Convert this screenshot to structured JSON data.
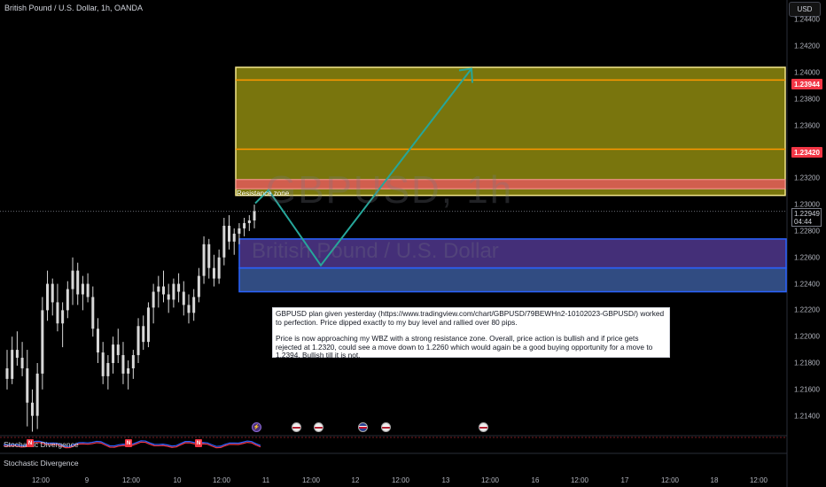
{
  "header": {
    "title": "British Pound / U.S. Dollar, 1h, OANDA",
    "currency": "USD"
  },
  "watermark": {
    "symbol": "GBPUSD, 1h",
    "name": "British Pound / U.S. Dollar"
  },
  "zone_label": "Resistance zone",
  "price_badges": {
    "upper": "1.23944",
    "lower": "1.23420"
  },
  "last_price": {
    "price": "1.22949",
    "countdown": "04:44"
  },
  "note": {
    "paragraph1": "GBPUSD plan given yesterday (https://www.tradingview.com/chart/GBPUSD/79BEWHn2-10102023-GBPUSD/) worked to perfection. Price dipped exactly to my buy level and rallied over 80 pips.",
    "paragraph2": "Price is now approaching my WBZ with a strong resistance zone. Overall, price action is bullish and if price gets rejected at 1.2320, could see a move down to 1.2260 which would again be a good buying opportunity for a move to 1.2394. Bullish till it is not."
  },
  "indicators": {
    "pane1": "Stochastic Divergence",
    "pane2": "Stochastic Divergence",
    "marker": "N"
  },
  "colors": {
    "up": "#089981",
    "down": "#f23645",
    "resistance_fill": "#8e8a0f",
    "resistance_border": "#f5e88a",
    "orange_line": "#ff9800",
    "support_fill": "#3d5fa3",
    "support_border": "#2962ff",
    "arrow": "#26a69a"
  },
  "icons": [
    "bolt-icon",
    "us-flag-icon",
    "uk-flag-icon"
  ],
  "chart_data": {
    "type": "candlestick",
    "symbol": "GBPUSD",
    "interval": "1h",
    "y_ticks": [
      "1.24400",
      "1.24200",
      "1.24000",
      "1.23800",
      "1.23600",
      "1.23400",
      "1.23200",
      "1.23000",
      "1.22800",
      "1.22600",
      "1.22400",
      "1.22200",
      "1.22000",
      "1.21800",
      "1.21600",
      "1.21400"
    ],
    "x_ticks": [
      "12:00",
      "9",
      "12:00",
      "10",
      "12:00",
      "11",
      "12:00",
      "12",
      "12:00",
      "13",
      "12:00",
      "16",
      "12:00",
      "17",
      "12:00",
      "18",
      "12:00"
    ],
    "ylim": [
      1.2125,
      1.2455
    ],
    "zones": {
      "resistance": [
        1.2307,
        1.2404
      ],
      "resistance_core": [
        1.2312,
        1.2319
      ],
      "support_upper": [
        1.2252,
        1.2274
      ],
      "support_lower": [
        1.2234,
        1.2252
      ]
    },
    "levels": [
      1.23944,
      1.2342
    ],
    "last": 1.22949,
    "projection": [
      1.2301,
      1.2311,
      1.2254,
      1.2403
    ],
    "ohlc": [
      [
        1.2176,
        1.219,
        1.216,
        1.2168
      ],
      [
        1.2168,
        1.22,
        1.2164,
        1.219
      ],
      [
        1.219,
        1.2204,
        1.2178,
        1.2184
      ],
      [
        1.2184,
        1.2196,
        1.217,
        1.2176
      ],
      [
        1.2176,
        1.219,
        1.2132,
        1.215
      ],
      [
        1.215,
        1.216,
        1.2128,
        1.214
      ],
      [
        1.214,
        1.218,
        1.213,
        1.2172
      ],
      [
        1.2172,
        1.223,
        1.216,
        1.222
      ],
      [
        1.222,
        1.225,
        1.2212,
        1.224
      ],
      [
        1.224,
        1.2244,
        1.2216,
        1.2226
      ],
      [
        1.2226,
        1.224,
        1.2204,
        1.221
      ],
      [
        1.221,
        1.2226,
        1.2192,
        1.222
      ],
      [
        1.222,
        1.2242,
        1.2214,
        1.2236
      ],
      [
        1.2236,
        1.226,
        1.2224,
        1.225
      ],
      [
        1.225,
        1.2256,
        1.2224,
        1.2232
      ],
      [
        1.2232,
        1.2246,
        1.222,
        1.224
      ],
      [
        1.224,
        1.2248,
        1.2226,
        1.223
      ],
      [
        1.223,
        1.2238,
        1.22,
        1.2206
      ],
      [
        1.2206,
        1.2214,
        1.218,
        1.2188
      ],
      [
        1.2188,
        1.2196,
        1.2164,
        1.217
      ],
      [
        1.217,
        1.2186,
        1.216,
        1.218
      ],
      [
        1.218,
        1.22,
        1.2172,
        1.2194
      ],
      [
        1.2194,
        1.2206,
        1.218,
        1.2186
      ],
      [
        1.2186,
        1.2196,
        1.2164,
        1.2172
      ],
      [
        1.2172,
        1.2182,
        1.216,
        1.2176
      ],
      [
        1.2176,
        1.219,
        1.2168,
        1.2186
      ],
      [
        1.2186,
        1.2214,
        1.218,
        1.2208
      ],
      [
        1.2208,
        1.2216,
        1.219,
        1.2196
      ],
      [
        1.2196,
        1.2226,
        1.2192,
        1.2222
      ],
      [
        1.2222,
        1.224,
        1.221,
        1.2234
      ],
      [
        1.2234,
        1.2246,
        1.2222,
        1.2238
      ],
      [
        1.2238,
        1.225,
        1.2226,
        1.2232
      ],
      [
        1.2232,
        1.224,
        1.2218,
        1.2228
      ],
      [
        1.2228,
        1.2244,
        1.2222,
        1.224
      ],
      [
        1.224,
        1.2248,
        1.2226,
        1.2234
      ],
      [
        1.2234,
        1.2242,
        1.2216,
        1.2224
      ],
      [
        1.2224,
        1.2232,
        1.221,
        1.2218
      ],
      [
        1.2218,
        1.2236,
        1.2212,
        1.223
      ],
      [
        1.223,
        1.2252,
        1.2226,
        1.2246
      ],
      [
        1.2246,
        1.2276,
        1.224,
        1.227
      ],
      [
        1.227,
        1.2274,
        1.2244,
        1.2252
      ],
      [
        1.2252,
        1.2262,
        1.2238,
        1.2244
      ],
      [
        1.2244,
        1.2266,
        1.224,
        1.226
      ],
      [
        1.226,
        1.229,
        1.2254,
        1.2284
      ],
      [
        1.2284,
        1.2292,
        1.2266,
        1.2272
      ],
      [
        1.2272,
        1.2282,
        1.2262,
        1.2278
      ],
      [
        1.2278,
        1.2286,
        1.227,
        1.2282
      ],
      [
        1.2282,
        1.229,
        1.2276,
        1.2286
      ],
      [
        1.2286,
        1.2292,
        1.228,
        1.2288
      ],
      [
        1.2288,
        1.23,
        1.2282,
        1.2295
      ]
    ]
  }
}
